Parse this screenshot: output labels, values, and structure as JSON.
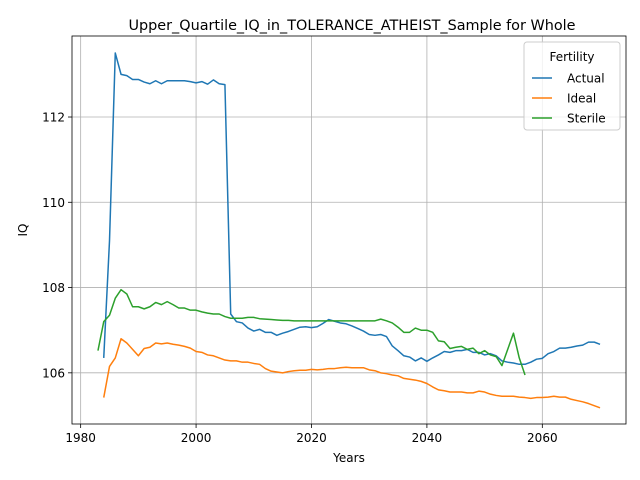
{
  "chart_data": {
    "type": "line",
    "title": "Upper_Quartile_IQ_in_TOLERANCE_ATHEIST_Sample for Whole",
    "xlabel": "Years",
    "ylabel": "IQ",
    "xlim": [
      1978.5,
      2074.5
    ],
    "ylim": [
      104.8,
      113.9
    ],
    "xticks": [
      1980,
      2000,
      2020,
      2040,
      2060
    ],
    "yticks": [
      106,
      108,
      110,
      112
    ],
    "grid": true,
    "legend": {
      "title": "Fertility",
      "placement": "top-right"
    },
    "series": [
      {
        "name": "Actual",
        "color": "#1f77b4",
        "points": [
          [
            1984,
            106.35
          ],
          [
            1985,
            109.1
          ],
          [
            1986,
            113.5
          ],
          [
            1987,
            113.0
          ],
          [
            1988,
            112.97
          ],
          [
            1989,
            112.88
          ],
          [
            1990,
            112.88
          ],
          [
            1991,
            112.82
          ],
          [
            1992,
            112.78
          ],
          [
            1993,
            112.85
          ],
          [
            1994,
            112.78
          ],
          [
            1995,
            112.85
          ],
          [
            1996,
            112.85
          ],
          [
            1997,
            112.85
          ],
          [
            1998,
            112.85
          ],
          [
            1999,
            112.83
          ],
          [
            2000,
            112.8
          ],
          [
            2001,
            112.83
          ],
          [
            2002,
            112.77
          ],
          [
            2003,
            112.87
          ],
          [
            2004,
            112.78
          ],
          [
            2005,
            112.76
          ],
          [
            2006,
            107.38
          ],
          [
            2007,
            107.2
          ],
          [
            2008,
            107.17
          ],
          [
            2009,
            107.05
          ],
          [
            2010,
            106.98
          ],
          [
            2011,
            107.02
          ],
          [
            2012,
            106.95
          ],
          [
            2013,
            106.95
          ],
          [
            2014,
            106.88
          ],
          [
            2015,
            106.93
          ],
          [
            2016,
            106.97
          ],
          [
            2017,
            107.02
          ],
          [
            2018,
            107.07
          ],
          [
            2019,
            107.08
          ],
          [
            2020,
            107.06
          ],
          [
            2021,
            107.08
          ],
          [
            2022,
            107.16
          ],
          [
            2023,
            107.25
          ],
          [
            2024,
            107.21
          ],
          [
            2025,
            107.17
          ],
          [
            2026,
            107.15
          ],
          [
            2027,
            107.1
          ],
          [
            2028,
            107.04
          ],
          [
            2029,
            106.98
          ],
          [
            2030,
            106.9
          ],
          [
            2031,
            106.88
          ],
          [
            2032,
            106.9
          ],
          [
            2033,
            106.85
          ],
          [
            2034,
            106.63
          ],
          [
            2035,
            106.52
          ],
          [
            2036,
            106.4
          ],
          [
            2037,
            106.37
          ],
          [
            2038,
            106.28
          ],
          [
            2039,
            106.35
          ],
          [
            2040,
            106.27
          ],
          [
            2041,
            106.35
          ],
          [
            2042,
            106.42
          ],
          [
            2043,
            106.5
          ],
          [
            2044,
            106.48
          ],
          [
            2045,
            106.52
          ],
          [
            2046,
            106.52
          ],
          [
            2047,
            106.55
          ],
          [
            2048,
            106.48
          ],
          [
            2049,
            106.48
          ],
          [
            2050,
            106.42
          ],
          [
            2051,
            106.45
          ],
          [
            2052,
            106.4
          ],
          [
            2053,
            106.28
          ],
          [
            2054,
            106.25
          ],
          [
            2055,
            106.23
          ],
          [
            2056,
            106.2
          ],
          [
            2057,
            106.2
          ],
          [
            2058,
            106.25
          ],
          [
            2059,
            106.32
          ],
          [
            2060,
            106.34
          ],
          [
            2061,
            106.45
          ],
          [
            2062,
            106.5
          ],
          [
            2063,
            106.58
          ],
          [
            2064,
            106.58
          ],
          [
            2065,
            106.6
          ],
          [
            2066,
            106.63
          ],
          [
            2067,
            106.65
          ],
          [
            2068,
            106.72
          ],
          [
            2069,
            106.72
          ],
          [
            2070,
            106.67
          ]
        ]
      },
      {
        "name": "Ideal",
        "color": "#ff7f0e",
        "points": [
          [
            1984,
            105.42
          ],
          [
            1985,
            106.15
          ],
          [
            1986,
            106.35
          ],
          [
            1987,
            106.8
          ],
          [
            1988,
            106.7
          ],
          [
            1989,
            106.55
          ],
          [
            1990,
            106.4
          ],
          [
            1991,
            106.57
          ],
          [
            1992,
            106.6
          ],
          [
            1993,
            106.7
          ],
          [
            1994,
            106.68
          ],
          [
            1995,
            106.7
          ],
          [
            1996,
            106.67
          ],
          [
            1997,
            106.65
          ],
          [
            1998,
            106.62
          ],
          [
            1999,
            106.58
          ],
          [
            2000,
            106.5
          ],
          [
            2001,
            106.48
          ],
          [
            2002,
            106.42
          ],
          [
            2003,
            106.4
          ],
          [
            2004,
            106.35
          ],
          [
            2005,
            106.3
          ],
          [
            2006,
            106.28
          ],
          [
            2007,
            106.28
          ],
          [
            2008,
            106.25
          ],
          [
            2009,
            106.25
          ],
          [
            2010,
            106.22
          ],
          [
            2011,
            106.2
          ],
          [
            2012,
            106.1
          ],
          [
            2013,
            106.04
          ],
          [
            2014,
            106.02
          ],
          [
            2015,
            106.0
          ],
          [
            2016,
            106.03
          ],
          [
            2017,
            106.05
          ],
          [
            2018,
            106.06
          ],
          [
            2019,
            106.06
          ],
          [
            2020,
            106.08
          ],
          [
            2021,
            106.07
          ],
          [
            2022,
            106.08
          ],
          [
            2023,
            106.1
          ],
          [
            2024,
            106.1
          ],
          [
            2025,
            106.12
          ],
          [
            2026,
            106.13
          ],
          [
            2027,
            106.12
          ],
          [
            2028,
            106.12
          ],
          [
            2029,
            106.12
          ],
          [
            2030,
            106.07
          ],
          [
            2031,
            106.05
          ],
          [
            2032,
            106.0
          ],
          [
            2033,
            105.98
          ],
          [
            2034,
            105.95
          ],
          [
            2035,
            105.93
          ],
          [
            2036,
            105.87
          ],
          [
            2037,
            105.85
          ],
          [
            2038,
            105.83
          ],
          [
            2039,
            105.8
          ],
          [
            2040,
            105.75
          ],
          [
            2041,
            105.67
          ],
          [
            2042,
            105.6
          ],
          [
            2043,
            105.58
          ],
          [
            2044,
            105.55
          ],
          [
            2045,
            105.55
          ],
          [
            2046,
            105.55
          ],
          [
            2047,
            105.53
          ],
          [
            2048,
            105.53
          ],
          [
            2049,
            105.57
          ],
          [
            2050,
            105.55
          ],
          [
            2051,
            105.5
          ],
          [
            2052,
            105.47
          ],
          [
            2053,
            105.45
          ],
          [
            2054,
            105.45
          ],
          [
            2055,
            105.45
          ],
          [
            2056,
            105.43
          ],
          [
            2057,
            105.42
          ],
          [
            2058,
            105.4
          ],
          [
            2059,
            105.42
          ],
          [
            2060,
            105.42
          ],
          [
            2061,
            105.43
          ],
          [
            2062,
            105.45
          ],
          [
            2063,
            105.43
          ],
          [
            2064,
            105.43
          ],
          [
            2065,
            105.38
          ],
          [
            2066,
            105.35
          ],
          [
            2067,
            105.32
          ],
          [
            2068,
            105.28
          ],
          [
            2069,
            105.23
          ],
          [
            2070,
            105.18
          ]
        ]
      },
      {
        "name": "Sterile",
        "color": "#2ca02c",
        "points": [
          [
            1983,
            106.52
          ],
          [
            1984,
            107.2
          ],
          [
            1985,
            107.35
          ],
          [
            1986,
            107.75
          ],
          [
            1987,
            107.95
          ],
          [
            1988,
            107.85
          ],
          [
            1989,
            107.55
          ],
          [
            1990,
            107.55
          ],
          [
            1991,
            107.5
          ],
          [
            1992,
            107.55
          ],
          [
            1993,
            107.65
          ],
          [
            1994,
            107.6
          ],
          [
            1995,
            107.67
          ],
          [
            1996,
            107.6
          ],
          [
            1997,
            107.52
          ],
          [
            1998,
            107.52
          ],
          [
            1999,
            107.47
          ],
          [
            2000,
            107.47
          ],
          [
            2001,
            107.43
          ],
          [
            2002,
            107.4
          ],
          [
            2003,
            107.38
          ],
          [
            2004,
            107.38
          ],
          [
            2005,
            107.32
          ],
          [
            2006,
            107.28
          ],
          [
            2007,
            107.28
          ],
          [
            2008,
            107.28
          ],
          [
            2009,
            107.3
          ],
          [
            2010,
            107.3
          ],
          [
            2011,
            107.27
          ],
          [
            2012,
            107.26
          ],
          [
            2013,
            107.25
          ],
          [
            2014,
            107.24
          ],
          [
            2015,
            107.23
          ],
          [
            2016,
            107.23
          ],
          [
            2017,
            107.22
          ],
          [
            2018,
            107.22
          ],
          [
            2019,
            107.22
          ],
          [
            2020,
            107.22
          ],
          [
            2021,
            107.22
          ],
          [
            2022,
            107.22
          ],
          [
            2023,
            107.22
          ],
          [
            2024,
            107.22
          ],
          [
            2025,
            107.22
          ],
          [
            2026,
            107.22
          ],
          [
            2027,
            107.22
          ],
          [
            2028,
            107.22
          ],
          [
            2029,
            107.22
          ],
          [
            2030,
            107.22
          ],
          [
            2031,
            107.22
          ],
          [
            2032,
            107.26
          ],
          [
            2033,
            107.22
          ],
          [
            2034,
            107.17
          ],
          [
            2035,
            107.07
          ],
          [
            2036,
            106.95
          ],
          [
            2037,
            106.95
          ],
          [
            2038,
            107.05
          ],
          [
            2039,
            107.0
          ],
          [
            2040,
            107.0
          ],
          [
            2041,
            106.95
          ],
          [
            2042,
            106.75
          ],
          [
            2043,
            106.73
          ],
          [
            2044,
            106.57
          ],
          [
            2045,
            106.6
          ],
          [
            2046,
            106.62
          ],
          [
            2047,
            106.55
          ],
          [
            2048,
            106.58
          ],
          [
            2049,
            106.45
          ],
          [
            2050,
            106.52
          ],
          [
            2051,
            106.42
          ],
          [
            2052,
            106.38
          ],
          [
            2053,
            106.17
          ],
          [
            2054,
            106.55
          ],
          [
            2055,
            106.93
          ],
          [
            2056,
            106.35
          ],
          [
            2057,
            105.95
          ]
        ]
      }
    ]
  }
}
